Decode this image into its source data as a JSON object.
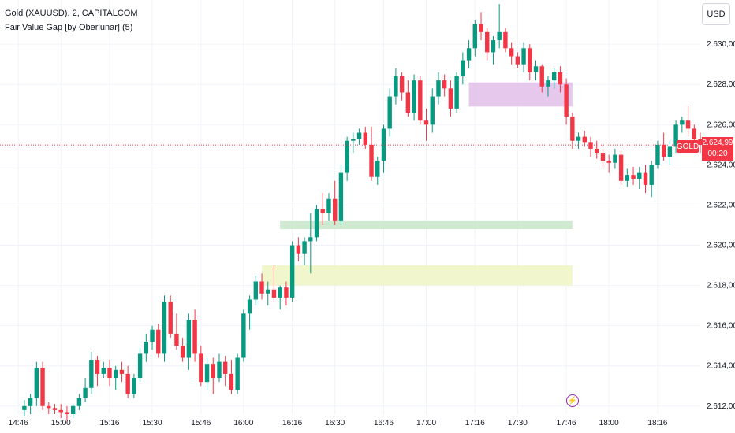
{
  "header": {
    "title": "Gold (XAUUSD), 2, CAPITALCOM",
    "indicator": "Fair Value Gap [by Oberlunar] (5)"
  },
  "currency_button": "USD",
  "price_tag": {
    "symbol": "GOLD",
    "price": "2.624,99",
    "countdown": "00:20"
  },
  "colors": {
    "up": "#089981",
    "down": "#f23645",
    "fvg_bearish": "#e1bee7",
    "fvg_bullish_1": "#c8e6c9",
    "fvg_bullish_2": "#f0f4c3",
    "grid": "#f0f3fa"
  },
  "chart_data": {
    "type": "candlestick",
    "y_ticks": [
      "2.630,00",
      "2.628,00",
      "2.626,00",
      "2.624,00",
      "2.622,00",
      "2.620,00",
      "2.618,00",
      "2.616,00",
      "2.614,00",
      "2.612,00"
    ],
    "y_tick_values": [
      2630,
      2628,
      2626,
      2624,
      2622,
      2620,
      2618,
      2616,
      2614,
      2612
    ],
    "ylim": [
      2611.6,
      2632.2
    ],
    "x_ticks": [
      "14:46",
      "15:00",
      "15:16",
      "15:30",
      "15:46",
      "16:00",
      "16:16",
      "16:30",
      "16:46",
      "17:00",
      "17:16",
      "17:30",
      "17:46",
      "18:00",
      "18:16"
    ],
    "x_tick_minutes": [
      886,
      900,
      916,
      930,
      946,
      960,
      976,
      990,
      1006,
      1020,
      1036,
      1050,
      1066,
      1080,
      1096
    ],
    "xlim": [
      880,
      1110
    ],
    "current_price": 2624.99,
    "fvg_zones": [
      {
        "type": "bearish",
        "t_start": 1034,
        "t_end": 1068,
        "low": 2626.9,
        "high": 2628.1
      },
      {
        "type": "bullish",
        "t_start": 972,
        "t_end": 1068,
        "low": 2620.8,
        "high": 2621.2
      },
      {
        "type": "bullish",
        "t_start": 966,
        "t_end": 1068,
        "low": 2618.0,
        "high": 2619.0
      }
    ],
    "candles_start_minute": 888,
    "candle_interval_min": 2,
    "candles": [
      [
        2611.8,
        2612.3,
        2611.5,
        2612.0
      ],
      [
        2612.0,
        2612.6,
        2611.6,
        2612.4
      ],
      [
        2612.4,
        2614.2,
        2612.0,
        2613.9
      ],
      [
        2613.9,
        2614.2,
        2611.8,
        2612.0
      ],
      [
        2612.0,
        2612.2,
        2611.6,
        2611.9
      ],
      [
        2611.9,
        2612.1,
        2611.6,
        2611.8
      ],
      [
        2611.8,
        2612.1,
        2611.4,
        2611.7
      ],
      [
        2611.7,
        2612.0,
        2611.3,
        2611.6
      ],
      [
        2611.6,
        2612.1,
        2611.4,
        2612.0
      ],
      [
        2612.0,
        2612.6,
        2611.8,
        2612.4
      ],
      [
        2612.4,
        2613.4,
        2612.2,
        2612.9
      ],
      [
        2612.9,
        2614.7,
        2612.6,
        2614.3
      ],
      [
        2614.3,
        2614.5,
        2613.0,
        2613.6
      ],
      [
        2613.6,
        2614.2,
        2613.4,
        2613.9
      ],
      [
        2613.9,
        2614.3,
        2613.0,
        2613.4
      ],
      [
        2613.4,
        2614.0,
        2612.8,
        2613.8
      ],
      [
        2613.8,
        2614.2,
        2613.2,
        2613.6
      ],
      [
        2613.6,
        2614.0,
        2612.4,
        2612.6
      ],
      [
        2612.6,
        2613.6,
        2612.4,
        2613.4
      ],
      [
        2613.4,
        2614.9,
        2613.2,
        2614.6
      ],
      [
        2614.6,
        2615.6,
        2614.2,
        2615.2
      ],
      [
        2615.2,
        2616.0,
        2614.8,
        2615.8
      ],
      [
        2615.8,
        2616.1,
        2614.4,
        2614.6
      ],
      [
        2614.6,
        2617.5,
        2614.2,
        2617.2
      ],
      [
        2617.2,
        2617.5,
        2615.4,
        2615.6
      ],
      [
        2615.6,
        2616.6,
        2614.8,
        2615.0
      ],
      [
        2615.0,
        2615.4,
        2614.2,
        2614.4
      ],
      [
        2614.4,
        2616.6,
        2613.8,
        2616.3
      ],
      [
        2616.3,
        2616.8,
        2614.2,
        2614.6
      ],
      [
        2614.6,
        2615.0,
        2613.0,
        2613.2
      ],
      [
        2613.2,
        2614.4,
        2612.8,
        2614.1
      ],
      [
        2614.1,
        2614.4,
        2612.6,
        2613.4
      ],
      [
        2613.4,
        2614.6,
        2613.2,
        2614.2
      ],
      [
        2614.2,
        2614.5,
        2613.0,
        2613.6
      ],
      [
        2613.6,
        2614.3,
        2612.6,
        2612.8
      ],
      [
        2612.8,
        2614.6,
        2612.6,
        2614.4
      ],
      [
        2614.4,
        2616.8,
        2614.2,
        2616.6
      ],
      [
        2616.6,
        2617.5,
        2615.8,
        2617.3
      ],
      [
        2617.3,
        2618.5,
        2617.0,
        2618.2
      ],
      [
        2618.2,
        2618.6,
        2617.3,
        2617.6
      ],
      [
        2617.6,
        2618.2,
        2617.0,
        2617.8
      ],
      [
        2617.8,
        2619.0,
        2617.2,
        2617.4
      ],
      [
        2617.4,
        2618.0,
        2616.8,
        2617.9
      ],
      [
        2617.9,
        2618.2,
        2617.0,
        2617.4
      ],
      [
        2617.4,
        2620.2,
        2617.2,
        2620.0
      ],
      [
        2620.0,
        2620.4,
        2619.2,
        2619.6
      ],
      [
        2619.6,
        2620.4,
        2619.0,
        2620.2
      ],
      [
        2620.2,
        2621.6,
        2618.6,
        2620.4
      ],
      [
        2620.4,
        2622.0,
        2620.2,
        2621.8
      ],
      [
        2621.8,
        2622.6,
        2621.0,
        2621.6
      ],
      [
        2621.6,
        2622.6,
        2621.2,
        2622.3
      ],
      [
        2622.3,
        2623.2,
        2621.0,
        2621.2
      ],
      [
        2621.2,
        2624.0,
        2621.0,
        2623.6
      ],
      [
        2623.6,
        2625.4,
        2623.2,
        2625.2
      ],
      [
        2625.2,
        2625.6,
        2624.6,
        2625.3
      ],
      [
        2625.3,
        2625.8,
        2625.0,
        2625.6
      ],
      [
        2625.6,
        2625.9,
        2624.8,
        2625.0
      ],
      [
        2625.0,
        2625.9,
        2623.2,
        2623.4
      ],
      [
        2623.4,
        2624.4,
        2623.0,
        2624.2
      ],
      [
        2624.2,
        2626.0,
        2623.6,
        2625.8
      ],
      [
        2625.8,
        2627.8,
        2625.4,
        2627.4
      ],
      [
        2627.4,
        2628.8,
        2627.0,
        2628.4
      ],
      [
        2628.4,
        2628.6,
        2627.2,
        2627.6
      ],
      [
        2627.6,
        2628.2,
        2626.4,
        2626.6
      ],
      [
        2626.6,
        2628.5,
        2626.2,
        2628.2
      ],
      [
        2628.2,
        2628.4,
        2626.0,
        2626.2
      ],
      [
        2626.2,
        2626.8,
        2625.2,
        2626.0
      ],
      [
        2626.0,
        2627.8,
        2625.6,
        2627.4
      ],
      [
        2627.4,
        2628.6,
        2627.0,
        2628.2
      ],
      [
        2628.2,
        2628.5,
        2627.4,
        2627.8
      ],
      [
        2627.8,
        2628.2,
        2626.4,
        2626.8
      ],
      [
        2626.8,
        2628.6,
        2626.6,
        2628.4
      ],
      [
        2628.4,
        2629.6,
        2628.0,
        2629.2
      ],
      [
        2629.2,
        2630.2,
        2628.8,
        2629.8
      ],
      [
        2629.8,
        2631.2,
        2629.4,
        2631.0
      ],
      [
        2631.0,
        2631.6,
        2630.2,
        2630.6
      ],
      [
        2630.6,
        2630.8,
        2629.2,
        2629.6
      ],
      [
        2629.6,
        2630.4,
        2629.0,
        2630.2
      ],
      [
        2630.2,
        2632.0,
        2629.8,
        2630.6
      ],
      [
        2630.6,
        2630.8,
        2629.6,
        2629.8
      ],
      [
        2629.8,
        2630.1,
        2629.0,
        2629.4
      ],
      [
        2629.4,
        2629.6,
        2628.8,
        2629.0
      ],
      [
        2629.0,
        2630.1,
        2628.6,
        2629.8
      ],
      [
        2629.8,
        2630.0,
        2628.2,
        2628.6
      ],
      [
        2628.6,
        2629.2,
        2628.2,
        2628.9
      ],
      [
        2628.9,
        2629.0,
        2627.6,
        2627.9
      ],
      [
        2627.9,
        2628.4,
        2627.4,
        2628.2
      ],
      [
        2628.2,
        2628.8,
        2627.8,
        2628.6
      ],
      [
        2628.6,
        2628.9,
        2627.6,
        2628.0
      ],
      [
        2628.0,
        2628.3,
        2626.0,
        2626.4
      ],
      [
        2626.4,
        2626.6,
        2624.8,
        2625.2
      ],
      [
        2625.2,
        2625.6,
        2624.8,
        2625.4
      ],
      [
        2625.4,
        2625.7,
        2624.9,
        2625.1
      ],
      [
        2625.1,
        2625.4,
        2624.4,
        2624.8
      ],
      [
        2624.8,
        2625.2,
        2624.3,
        2624.6
      ],
      [
        2624.6,
        2624.8,
        2623.8,
        2624.2
      ],
      [
        2624.2,
        2624.5,
        2623.6,
        2624.1
      ],
      [
        2624.1,
        2624.8,
        2623.8,
        2624.5
      ],
      [
        2624.5,
        2624.7,
        2623.0,
        2623.2
      ],
      [
        2623.2,
        2623.8,
        2622.9,
        2623.5
      ],
      [
        2623.5,
        2623.9,
        2623.0,
        2623.3
      ],
      [
        2623.3,
        2623.9,
        2622.8,
        2623.6
      ],
      [
        2623.6,
        2624.0,
        2622.6,
        2623.0
      ],
      [
        2623.0,
        2624.2,
        2622.4,
        2624.0
      ],
      [
        2624.0,
        2625.2,
        2623.8,
        2625.0
      ],
      [
        2625.0,
        2625.6,
        2624.2,
        2624.4
      ],
      [
        2624.4,
        2625.2,
        2624.0,
        2624.9
      ],
      [
        2624.9,
        2626.2,
        2624.6,
        2626.0
      ],
      [
        2626.0,
        2626.4,
        2625.6,
        2626.2
      ],
      [
        2626.2,
        2626.9,
        2625.4,
        2625.8
      ],
      [
        2625.8,
        2626.0,
        2625.0,
        2625.3
      ],
      [
        2625.3,
        2625.6,
        2624.6,
        2624.99
      ]
    ]
  }
}
